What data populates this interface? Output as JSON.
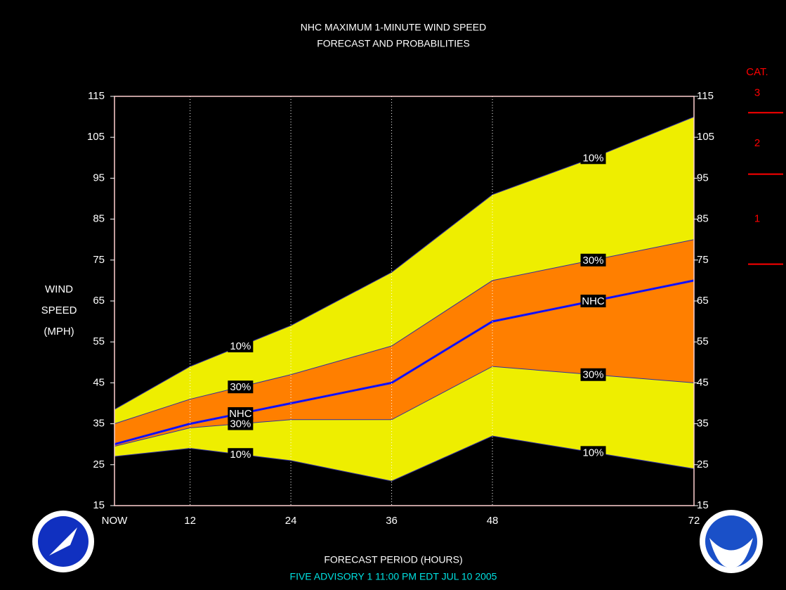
{
  "chart_data": {
    "type": "probability-band",
    "title": "NHC MAXIMUM 1-MINUTE WIND SPEED",
    "subtitle": "FORECAST AND PROBABILITIES",
    "ylabel": [
      "WIND",
      "SPEED",
      "(MPH)"
    ],
    "xlabel": "FORECAST PERIOD (HOURS)",
    "footer": "FIVE   ADVISORY  1  11:00  PM  EDT  JUL  10  2005",
    "x": [
      3,
      12,
      24,
      36,
      48,
      60,
      72
    ],
    "series": [
      {
        "name": "10%",
        "color": "#eeee00",
        "values": [
          38.5,
          49,
          59,
          72,
          91,
          100,
          110
        ]
      },
      {
        "name": "30%",
        "color": "#ff7f00",
        "values": [
          35,
          41,
          47,
          54,
          70,
          75,
          80
        ]
      },
      {
        "name": "NHC",
        "color": "#1010ff",
        "values": [
          30,
          35,
          40,
          45,
          60,
          65,
          70
        ]
      },
      {
        "name": "30%",
        "color": "#ff7f00",
        "values": [
          29.5,
          34,
          36,
          36,
          49,
          47,
          45
        ]
      },
      {
        "name": "10%",
        "color": "#eeee00",
        "values": [
          27,
          29,
          26,
          21,
          32,
          28,
          24
        ]
      }
    ],
    "xlim": [
      3,
      72
    ],
    "xticks": [
      {
        "value": 3,
        "label": "NOW"
      },
      12,
      24,
      36,
      48,
      72
    ],
    "ylim": [
      15,
      115
    ],
    "yticks": [
      15,
      25,
      35,
      45,
      55,
      65,
      75,
      85,
      95,
      105,
      115
    ],
    "grid": true,
    "category_title": "CAT.",
    "category_labels": [
      "1",
      "2",
      "3"
    ],
    "category_thresholds": [
      74,
      96,
      111
    ],
    "category_color": "#ff0000"
  }
}
